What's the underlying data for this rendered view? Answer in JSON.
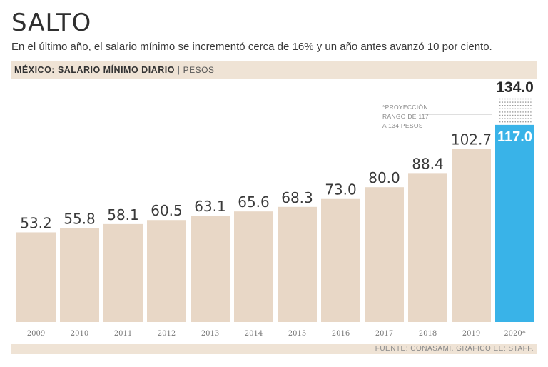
{
  "title": "SALTO",
  "subtitle": "En el último año, el salario mínimo se incrementó cerca de 16% y un año antes avanzó 10 por ciento.",
  "header": {
    "label": "MÉXICO: SALARIO MÍNIMO DIARIO",
    "separator": "|",
    "unit": "PESOS"
  },
  "note": {
    "lines": [
      "*PROYECCIÓN",
      "RANGO DE 117",
      "A 134 PESOS"
    ]
  },
  "source": "FUENTE: CONASAMI. GRÁFICO EE: STAFF.",
  "colors": {
    "bar": "#e8d7c6",
    "highlight": "#39b3e8",
    "band": "#efe3d5"
  },
  "chart_data": {
    "type": "bar",
    "title": "MÉXICO: SALARIO MÍNIMO DIARIO",
    "ylabel": "PESOS",
    "categories": [
      "2009",
      "2010",
      "2011",
      "2012",
      "2013",
      "2014",
      "2015",
      "2016",
      "2017",
      "2018",
      "2019",
      "2020*"
    ],
    "values": [
      53.2,
      55.8,
      58.1,
      60.5,
      63.1,
      65.6,
      68.3,
      73.0,
      80.0,
      88.4,
      102.7,
      117.0
    ],
    "labels": [
      "53.2",
      "55.8",
      "58.1",
      "60.5",
      "63.1",
      "65.6",
      "68.3",
      "73.0",
      "80.0",
      "88.4",
      "102.7",
      "117.0"
    ],
    "projection": {
      "category": "2020*",
      "low": 117.0,
      "high": 134.0,
      "high_label": "134.0"
    },
    "ylim": [
      0,
      140
    ]
  }
}
